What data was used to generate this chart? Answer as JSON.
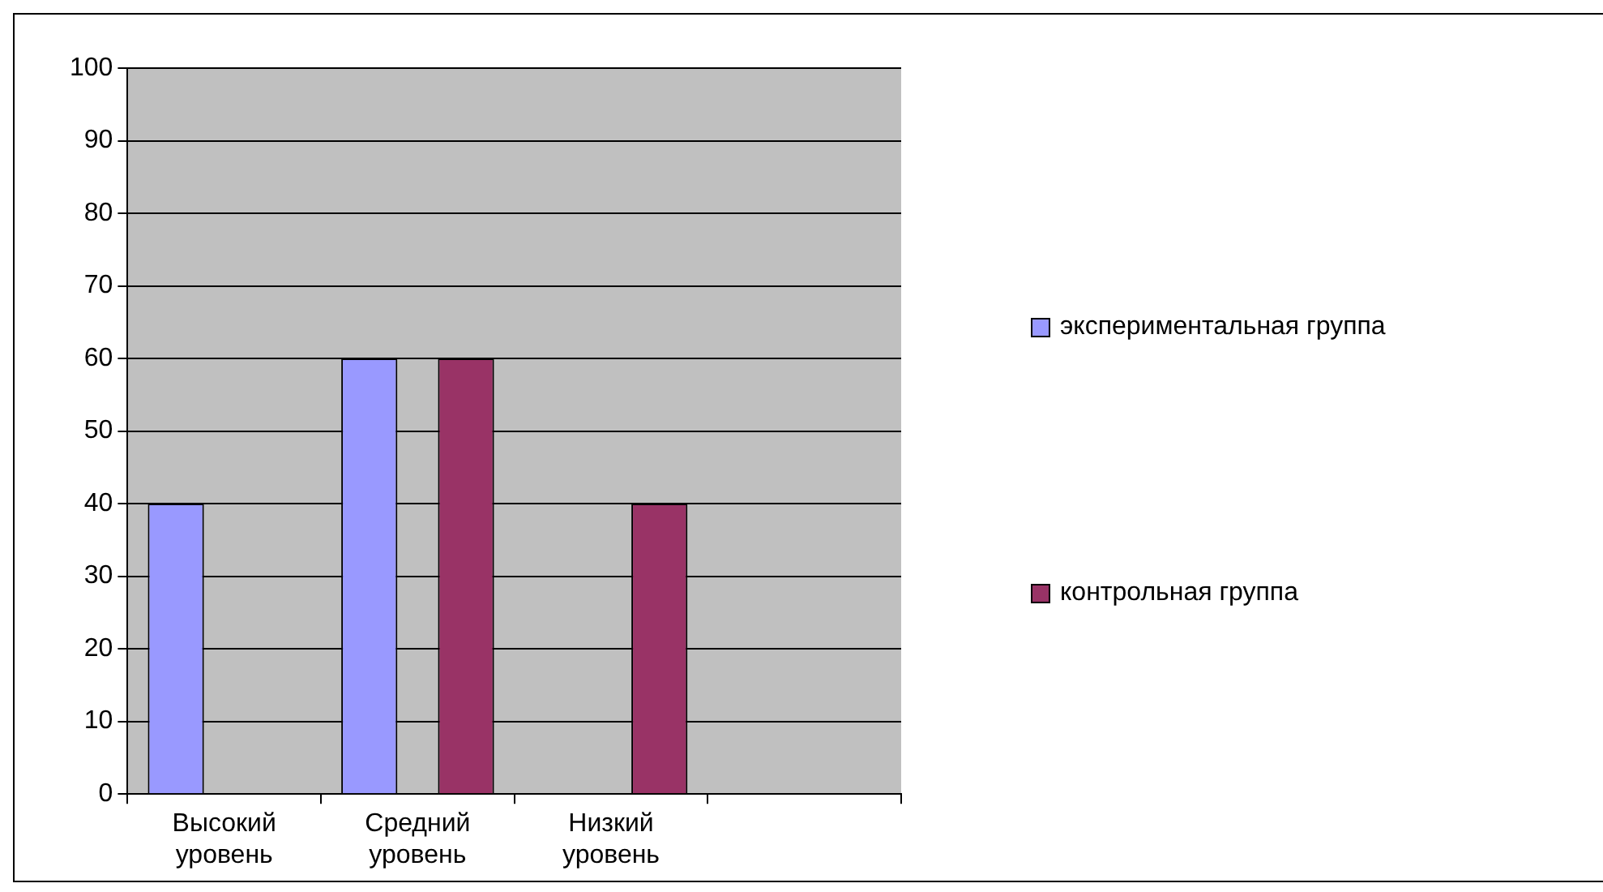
{
  "chart_data": {
    "type": "bar",
    "categories": [
      "Высокий уровень",
      "Средний уровень",
      "Низкий уровень",
      null
    ],
    "series": [
      {
        "name": "экспериментальная группа",
        "color": "#9999ff",
        "values": [
          40,
          60,
          0,
          null
        ]
      },
      {
        "name": "контрольная группа",
        "color": "#993366",
        "values": [
          0,
          60,
          40,
          null
        ]
      }
    ],
    "ylim": [
      0,
      100
    ],
    "yticks": [
      0,
      10,
      20,
      30,
      40,
      50,
      60,
      70,
      80,
      90,
      100
    ],
    "grid": "y",
    "legend": "right"
  }
}
